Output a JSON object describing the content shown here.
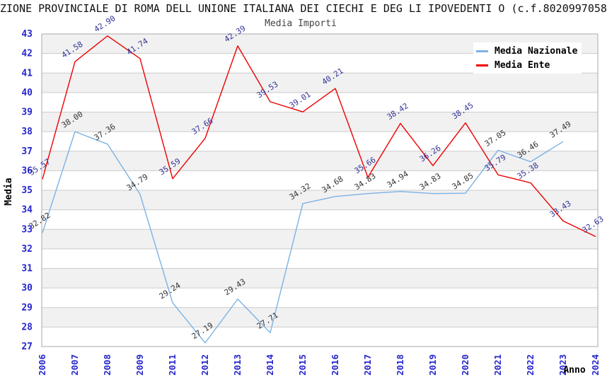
{
  "header": {
    "title": "ZIONE PROVINCIALE DI ROMA DELL UNIONE ITALIANA DEI CIECHI E DEG LI IPOVEDENTI O (c.f.8020997058",
    "subtitle": "Media Importi"
  },
  "chart_data": {
    "type": "line",
    "title": "Media Importi",
    "xlabel": "Anno",
    "ylabel": "Media",
    "ylim": [
      27,
      43
    ],
    "y_tick_step": 1,
    "grid": true,
    "alternating_bands": true,
    "legend_position": "top-right",
    "categories": [
      "2006",
      "2007",
      "2008",
      "2009",
      "2011",
      "2012",
      "2013",
      "2014",
      "2015",
      "2016",
      "2017",
      "2018",
      "2019",
      "2020",
      "2021",
      "2022",
      "2023",
      "2024"
    ],
    "series": [
      {
        "name": "Media Nazionale",
        "color": "#7cb2e4",
        "label_color": "#333333",
        "values": [
          32.82,
          38.0,
          37.36,
          34.79,
          29.24,
          27.19,
          29.43,
          27.71,
          34.32,
          34.68,
          34.83,
          34.94,
          34.83,
          34.85,
          37.05,
          36.46,
          37.49,
          null
        ]
      },
      {
        "name": "Media Ente",
        "color": "#ee0000",
        "label_color": "#333399",
        "values": [
          35.57,
          41.58,
          42.9,
          41.74,
          35.59,
          37.66,
          42.39,
          39.53,
          39.01,
          40.21,
          35.66,
          38.42,
          36.26,
          38.45,
          35.79,
          35.38,
          33.43,
          32.63
        ]
      }
    ],
    "colors": {
      "tick_label": "#2626cc",
      "grid_line": "#cccccc",
      "band_fill": "#f1f1f1",
      "plot_border": "#aaaaaa",
      "axis_title": "#000000"
    }
  }
}
